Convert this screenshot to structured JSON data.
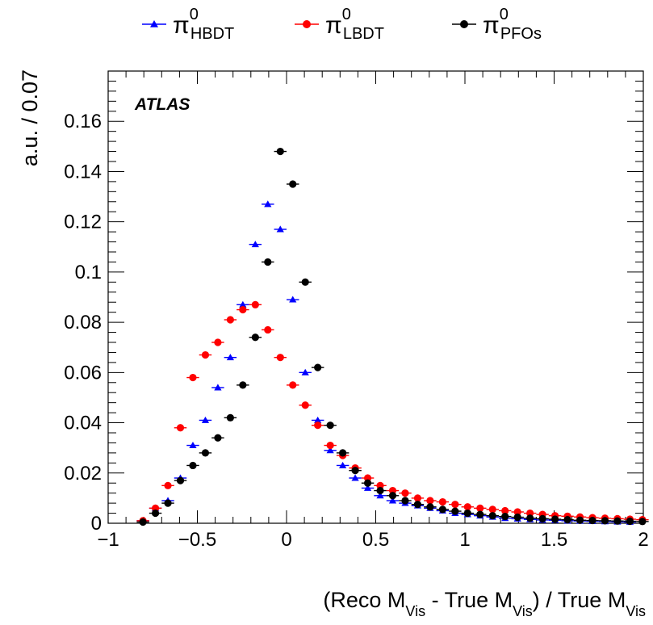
{
  "chart_data": {
    "type": "scatter",
    "title": "",
    "annotation": "ATLAS",
    "xlabel": {
      "prefix": "(Reco M",
      "sub1": "Vis",
      "mid": " - True M",
      "sub2": "Vis",
      "suffix": ") / True M",
      "sub3": "Vis"
    },
    "ylabel": "a.u. / 0.07",
    "xlim": [
      -1,
      2
    ],
    "ylim": [
      0,
      0.18
    ],
    "x_ticks": [
      -1,
      -0.5,
      0,
      0.5,
      1,
      1.5,
      2
    ],
    "x_tick_labels": [
      "−1",
      "−0.5",
      "0",
      "0.5",
      "1",
      "1.5",
      "2"
    ],
    "y_ticks": [
      0,
      0.02,
      0.04,
      0.06,
      0.08,
      0.1,
      0.12,
      0.14,
      0.16
    ],
    "y_tick_labels": [
      "0",
      "0.02",
      "0.04",
      "0.06",
      "0.08",
      "0.1",
      "0.12",
      "0.14",
      "0.16"
    ],
    "bin_half_width": 0.035,
    "legend_position": "top",
    "series": [
      {
        "name": "π",
        "sup": "0",
        "sub": "HBDT",
        "color": "#0000ff",
        "marker": "triangle",
        "x": [
          -0.805,
          -0.735,
          -0.665,
          -0.595,
          -0.525,
          -0.455,
          -0.385,
          -0.315,
          -0.245,
          -0.175,
          -0.105,
          -0.035,
          0.035,
          0.105,
          0.175,
          0.245,
          0.315,
          0.385,
          0.455,
          0.525,
          0.595,
          0.665,
          0.735,
          0.805,
          0.875,
          0.945,
          1.015,
          1.085,
          1.155,
          1.225,
          1.295,
          1.365,
          1.435,
          1.505,
          1.575,
          1.645,
          1.715,
          1.785,
          1.855,
          1.925
        ],
        "y": [
          0.001,
          0.006,
          0.009,
          0.018,
          0.031,
          0.041,
          0.054,
          0.066,
          0.087,
          0.111,
          0.127,
          0.117,
          0.089,
          0.06,
          0.041,
          0.029,
          0.023,
          0.018,
          0.014,
          0.011,
          0.009,
          0.008,
          0.007,
          0.006,
          0.005,
          0.004,
          0.0035,
          0.003,
          0.0025,
          0.002,
          0.0018,
          0.0015,
          0.0013,
          0.0012,
          0.001,
          0.0009,
          0.0008,
          0.0007,
          0.0006,
          0.0005
        ]
      },
      {
        "name": "π",
        "sup": "0",
        "sub": "LBDT",
        "color": "#ff0000",
        "marker": "circle",
        "x": [
          -0.805,
          -0.735,
          -0.665,
          -0.595,
          -0.525,
          -0.455,
          -0.385,
          -0.315,
          -0.245,
          -0.175,
          -0.105,
          -0.035,
          0.035,
          0.105,
          0.175,
          0.245,
          0.315,
          0.385,
          0.455,
          0.525,
          0.595,
          0.665,
          0.735,
          0.805,
          0.875,
          0.945,
          1.015,
          1.085,
          1.155,
          1.225,
          1.295,
          1.365,
          1.435,
          1.505,
          1.575,
          1.645,
          1.715,
          1.785,
          1.855,
          1.925,
          1.995
        ],
        "y": [
          0.001,
          0.006,
          0.015,
          0.038,
          0.058,
          0.067,
          0.072,
          0.081,
          0.085,
          0.087,
          0.077,
          0.066,
          0.055,
          0.047,
          0.039,
          0.031,
          0.027,
          0.022,
          0.018,
          0.015,
          0.013,
          0.012,
          0.01,
          0.009,
          0.0085,
          0.0075,
          0.0065,
          0.006,
          0.0055,
          0.005,
          0.0045,
          0.004,
          0.0035,
          0.003,
          0.0028,
          0.0025,
          0.0022,
          0.002,
          0.0018,
          0.0016,
          0.0014
        ]
      },
      {
        "name": "π",
        "sup": "0",
        "sub": "PFOs",
        "color": "#000000",
        "marker": "circle",
        "x": [
          -0.805,
          -0.735,
          -0.665,
          -0.595,
          -0.525,
          -0.455,
          -0.385,
          -0.315,
          -0.245,
          -0.175,
          -0.105,
          -0.035,
          0.035,
          0.105,
          0.175,
          0.245,
          0.315,
          0.385,
          0.455,
          0.525,
          0.595,
          0.665,
          0.735,
          0.805,
          0.875,
          0.945,
          1.015,
          1.085,
          1.155,
          1.225,
          1.295,
          1.365,
          1.435,
          1.505,
          1.575,
          1.645,
          1.715,
          1.785,
          1.855,
          1.925,
          1.995
        ],
        "y": [
          0.0005,
          0.004,
          0.008,
          0.017,
          0.023,
          0.028,
          0.034,
          0.042,
          0.055,
          0.074,
          0.104,
          0.148,
          0.135,
          0.096,
          0.062,
          0.039,
          0.028,
          0.021,
          0.016,
          0.013,
          0.011,
          0.009,
          0.0075,
          0.0065,
          0.0055,
          0.0048,
          0.004,
          0.0035,
          0.003,
          0.0027,
          0.0024,
          0.002,
          0.0018,
          0.0016,
          0.0014,
          0.0012,
          0.0011,
          0.001,
          0.0009,
          0.0008,
          0.0007
        ]
      }
    ]
  }
}
